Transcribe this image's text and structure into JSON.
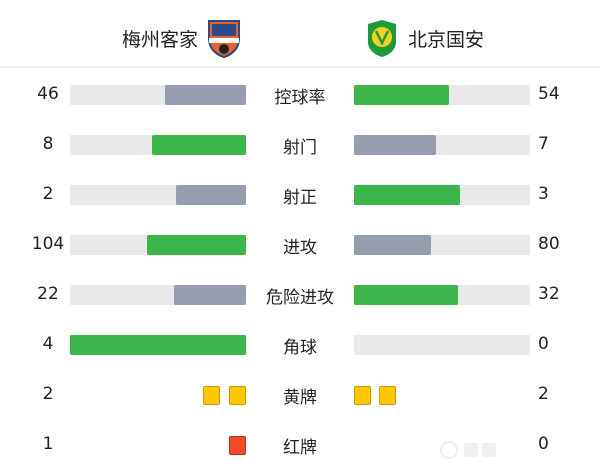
{
  "home": {
    "name": "梅州客家",
    "logo": "meizhou-hakka-crest"
  },
  "away": {
    "name": "北京国安",
    "logo": "beijing-guoan-crest"
  },
  "colors": {
    "winner": "#3cb54a",
    "loser": "#959dae",
    "track": "#e9e9e9",
    "yellow": "#fdc800",
    "red": "#f24a2a"
  },
  "stats": [
    {
      "label": "控球率",
      "home": "46",
      "away": "54",
      "home_frac": 0.46,
      "away_frac": 0.54
    },
    {
      "label": "射门",
      "home": "8",
      "away": "7",
      "home_frac": 0.533,
      "away_frac": 0.467
    },
    {
      "label": "射正",
      "home": "2",
      "away": "3",
      "home_frac": 0.4,
      "away_frac": 0.6
    },
    {
      "label": "进攻",
      "home": "104",
      "away": "80",
      "home_frac": 0.565,
      "away_frac": 0.435
    },
    {
      "label": "危险进攻",
      "home": "22",
      "away": "32",
      "home_frac": 0.407,
      "away_frac": 0.593
    },
    {
      "label": "角球",
      "home": "4",
      "away": "0",
      "home_frac": 1.0,
      "away_frac": 0.0
    }
  ],
  "cards": [
    {
      "label": "黄牌",
      "home": "2",
      "away": "2",
      "type": "yellow"
    },
    {
      "label": "红牌",
      "home": "1",
      "away": "0",
      "type": "red"
    }
  ]
}
